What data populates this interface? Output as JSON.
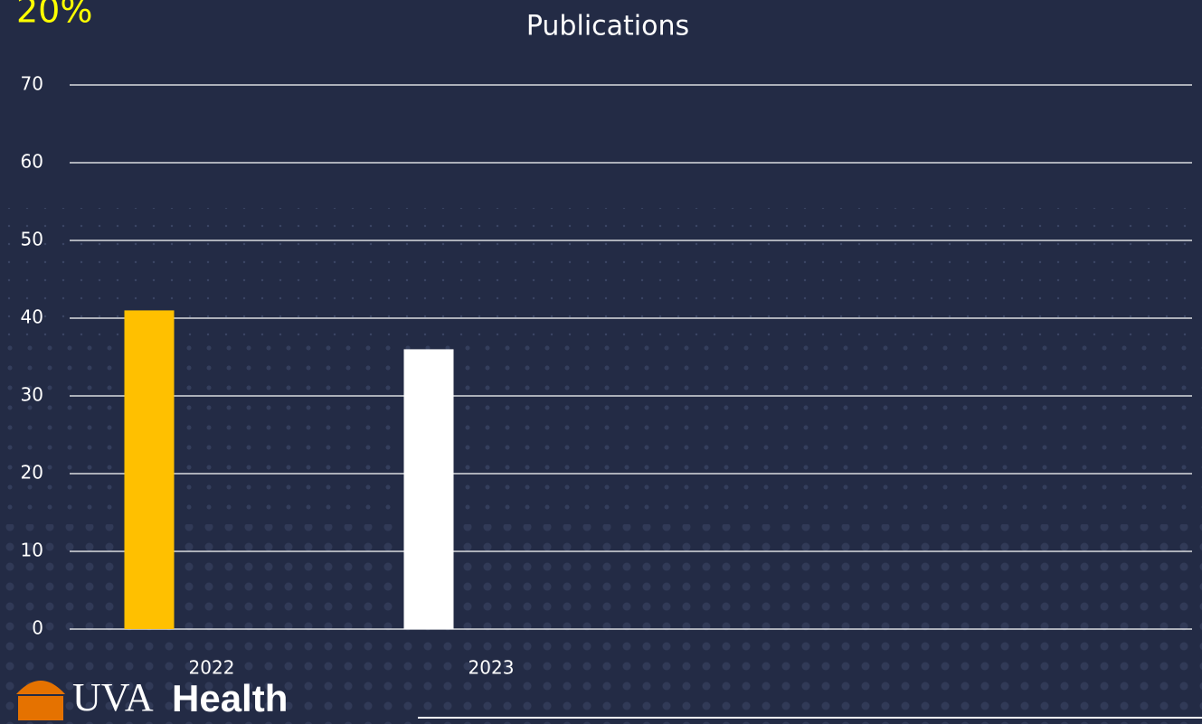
{
  "corner_text": "20%",
  "chart_data": {
    "type": "bar",
    "title": "Publications",
    "categories": [
      "2022",
      "2023"
    ],
    "values": [
      41,
      36
    ],
    "colors": [
      "#ffc000",
      "#ffffff"
    ],
    "ylim": [
      0,
      70
    ],
    "yticks": [
      0,
      10,
      20,
      30,
      40,
      50,
      60,
      70
    ],
    "grid": true
  },
  "logo": {
    "left": "UVA",
    "right": "Health"
  }
}
